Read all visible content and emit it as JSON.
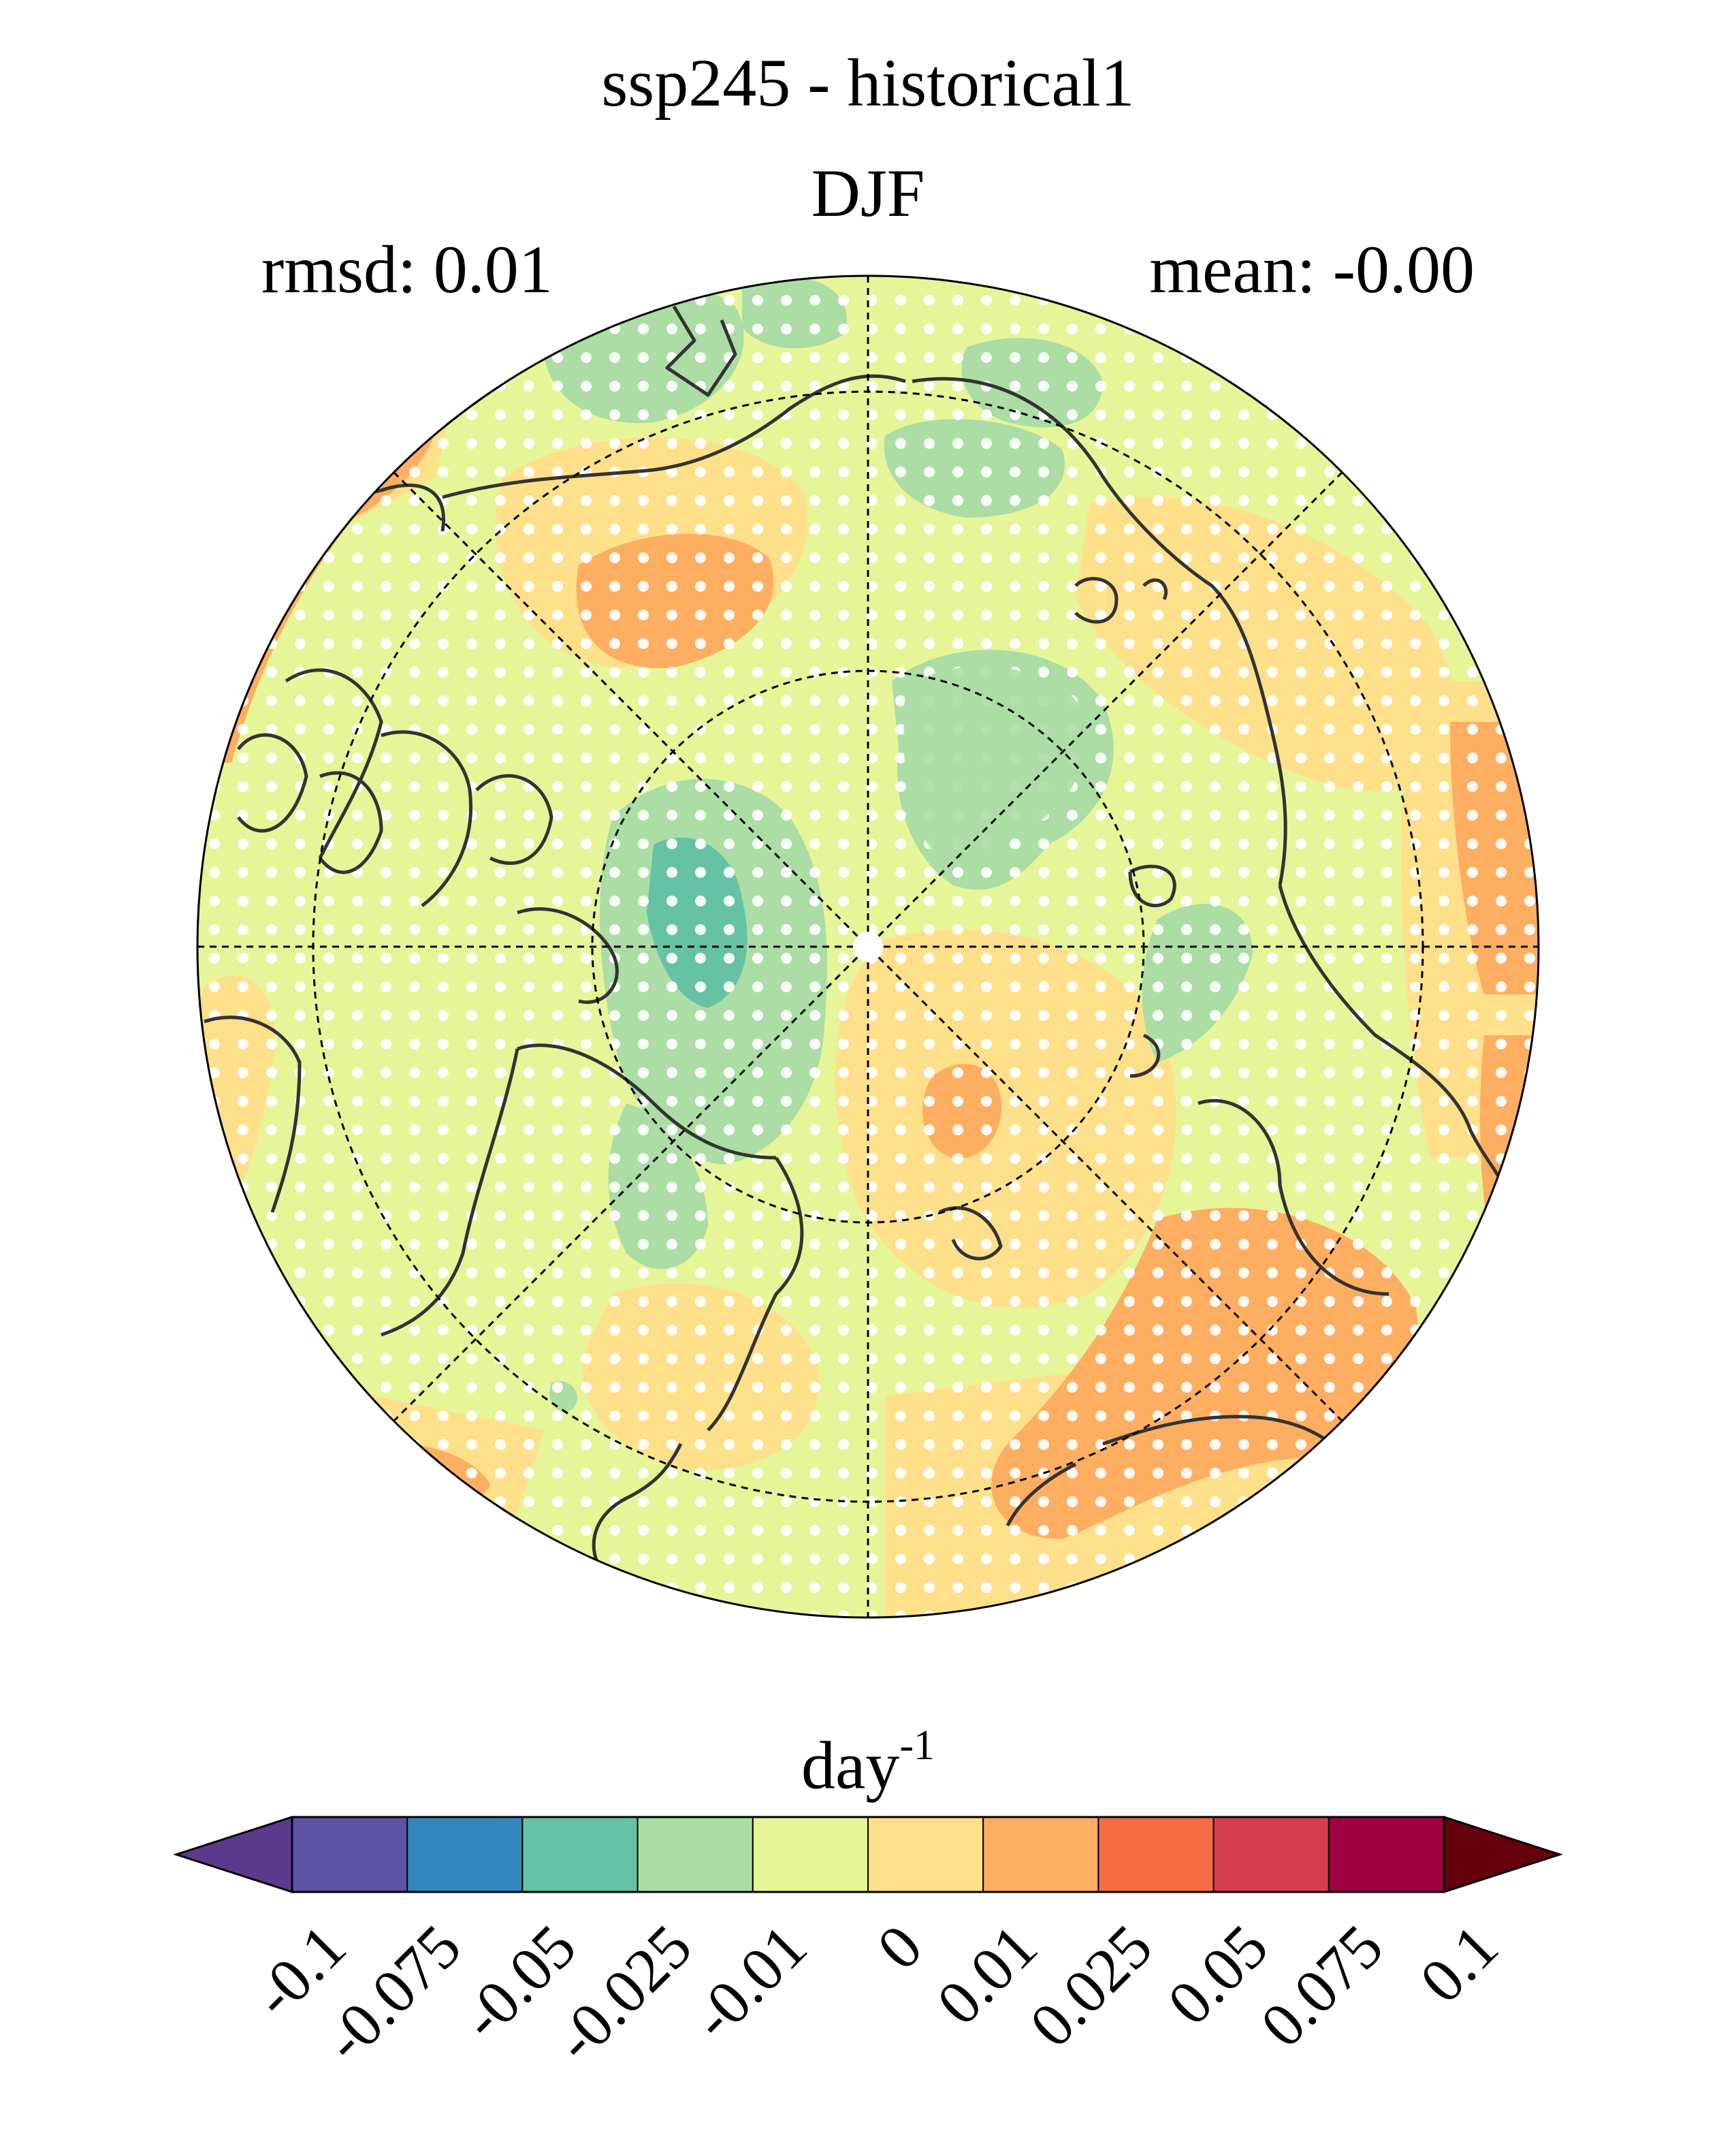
{
  "title": "ssp245 - historical1",
  "subtitle": "DJF",
  "rmsd_text": "rmsd: 0.01",
  "mean_text": "mean: -0.00",
  "colorbar": {
    "unit_base": "day",
    "unit_exp": "-1",
    "ticks": [
      "-0.1",
      "-0.075",
      "-0.05",
      "-0.025",
      "-0.01",
      "0",
      "0.01",
      "0.025",
      "0.05",
      "0.075",
      "0.1"
    ],
    "colors": [
      "#5c3b8f",
      "#5d52a3",
      "#3288bd",
      "#66c2a5",
      "#abdda4",
      "#e6f598",
      "#fee08b",
      "#fdae61",
      "#f46d43",
      "#d53e4f",
      "#9e0142",
      "#67000d"
    ]
  },
  "map": {
    "projection": "north-polar-stereographic",
    "background_color": "#e6f598",
    "stippling": true,
    "region_colors": {
      "neg_small": "#abdda4",
      "neg_med": "#66c2a5",
      "pos_small": "#fee08b",
      "pos_med": "#fdae61"
    }
  }
}
